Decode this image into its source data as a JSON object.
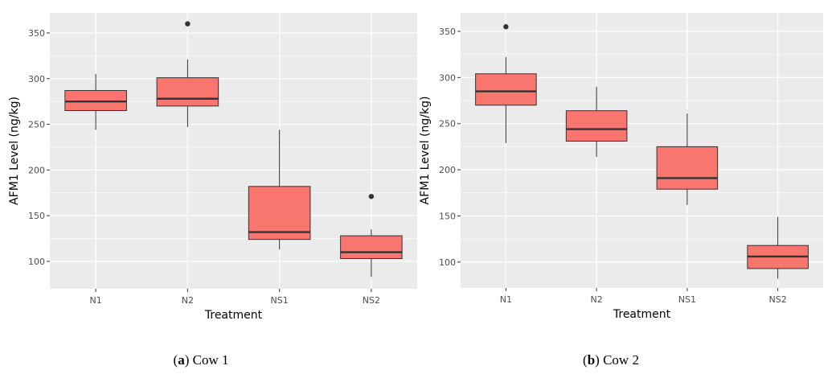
{
  "chart_data": [
    {
      "type": "boxplot",
      "xlabel": "Treatment",
      "ylabel": "AFM1 Level (ng/kg)",
      "ylim": [
        70,
        372
      ],
      "yticks": [
        100,
        150,
        200,
        250,
        300,
        350
      ],
      "categories": [
        "N1",
        "N2",
        "NS1",
        "NS2"
      ],
      "boxes": [
        {
          "category": "N1",
          "min": 244,
          "q1": 265,
          "median": 275,
          "q3": 287,
          "max": 305,
          "outliers": []
        },
        {
          "category": "N2",
          "min": 247,
          "q1": 270,
          "median": 278,
          "q3": 301,
          "max": 321,
          "outliers": [
            360
          ]
        },
        {
          "category": "NS1",
          "min": 113,
          "q1": 124,
          "median": 132,
          "q3": 182,
          "max": 244,
          "outliers": []
        },
        {
          "category": "NS2",
          "min": 83,
          "q1": 103,
          "median": 110,
          "q3": 128,
          "max": 135,
          "outliers": [
            171
          ]
        }
      ],
      "caption_label": "a",
      "caption_text": "Cow 1",
      "box_color": "#F8766D",
      "panel_bg": "#EBEBEB"
    },
    {
      "type": "boxplot",
      "xlabel": "Treatment",
      "ylabel": "AFM1 Level (ng/kg)",
      "ylim": [
        72,
        370
      ],
      "yticks": [
        100,
        150,
        200,
        250,
        300,
        350
      ],
      "categories": [
        "N1",
        "N2",
        "NS1",
        "NS2"
      ],
      "boxes": [
        {
          "category": "N1",
          "min": 229,
          "q1": 270,
          "median": 285,
          "q3": 304,
          "max": 322,
          "outliers": [
            355
          ]
        },
        {
          "category": "N2",
          "min": 214,
          "q1": 231,
          "median": 244,
          "q3": 264,
          "max": 290,
          "outliers": []
        },
        {
          "category": "NS1",
          "min": 162,
          "q1": 179,
          "median": 191,
          "q3": 225,
          "max": 261,
          "outliers": []
        },
        {
          "category": "NS2",
          "min": 82,
          "q1": 93,
          "median": 106,
          "q3": 118,
          "max": 149,
          "outliers": []
        }
      ],
      "caption_label": "b",
      "caption_text": "Cow 2",
      "box_color": "#F8766D",
      "panel_bg": "#EBEBEB"
    }
  ]
}
